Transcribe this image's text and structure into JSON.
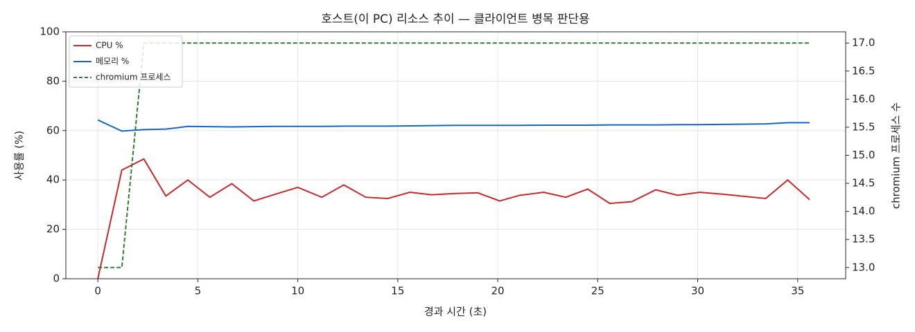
{
  "chart_data": {
    "type": "line",
    "title": "호스트(이 PC) 리소스 추이 — 클라이언트 병목 판단용",
    "x_label": "경과 시간 (초)",
    "y_label": "사용률 (%)",
    "y2_label": "chromium 프로세스 수",
    "x": [
      0.0,
      1.2,
      2.3,
      3.4,
      4.5,
      5.6,
      6.7,
      7.8,
      8.9,
      10.0,
      11.2,
      12.3,
      13.4,
      14.5,
      15.6,
      16.7,
      17.8,
      19.0,
      20.1,
      21.1,
      22.3,
      23.4,
      24.5,
      25.6,
      26.7,
      27.9,
      29.0,
      30.1,
      31.3,
      32.4,
      33.4,
      34.5,
      35.6
    ],
    "series": [
      {
        "name": "CPU %",
        "color": "#c62828",
        "linestyle": "solid",
        "values": [
          0,
          44,
          48.5,
          33.5,
          40,
          33,
          38.5,
          31.5,
          34.3,
          37,
          33,
          38,
          33,
          32.5,
          35,
          34,
          34.5,
          34.8,
          31.5,
          33.8,
          35,
          33,
          36.3,
          30.5,
          31.2,
          36,
          33.8,
          35,
          34.2,
          33.3,
          32.5,
          40,
          32
        ]
      },
      {
        "name": "메모리 %",
        "color": "#1565c0",
        "linestyle": "solid",
        "values": [
          64.3,
          59.8,
          60.4,
          60.6,
          61.7,
          61.6,
          61.5,
          61.6,
          61.7,
          61.7,
          61.7,
          61.8,
          61.8,
          61.8,
          61.9,
          62.0,
          62.1,
          62.1,
          62.1,
          62.1,
          62.2,
          62.2,
          62.2,
          62.3,
          62.3,
          62.3,
          62.4,
          62.4,
          62.5,
          62.6,
          62.7,
          63.2,
          63.2
        ]
      },
      {
        "name": "chromium 프로세스",
        "color": "#2e7d32",
        "linestyle": "dashed",
        "axis": "y2",
        "values": [
          13,
          13,
          17,
          17,
          17,
          17,
          17,
          17,
          17,
          17,
          17,
          17,
          17,
          17,
          17,
          17,
          17,
          17,
          17,
          17,
          17,
          17,
          17,
          17,
          17,
          17,
          17,
          17,
          17,
          17,
          17,
          17,
          17
        ]
      }
    ],
    "xlim": [
      -1.6,
      37.4
    ],
    "xticks": [
      0,
      5,
      10,
      15,
      20,
      25,
      30,
      35
    ],
    "ylim": [
      0,
      100
    ],
    "yticks": [
      0,
      20,
      40,
      60,
      80,
      100
    ],
    "y2lim": [
      12.8,
      17.2
    ],
    "y2ticks": [
      {
        "value": 13,
        "label": "13.0"
      },
      13.5,
      {
        "value": 14,
        "label": "14.0"
      },
      14.5,
      {
        "value": 15,
        "label": "15.0"
      },
      15.5,
      {
        "value": 16,
        "label": "16.0"
      },
      16.5,
      {
        "value": 17,
        "label": "17.0"
      }
    ],
    "grid": true,
    "legend": "upper-left"
  }
}
